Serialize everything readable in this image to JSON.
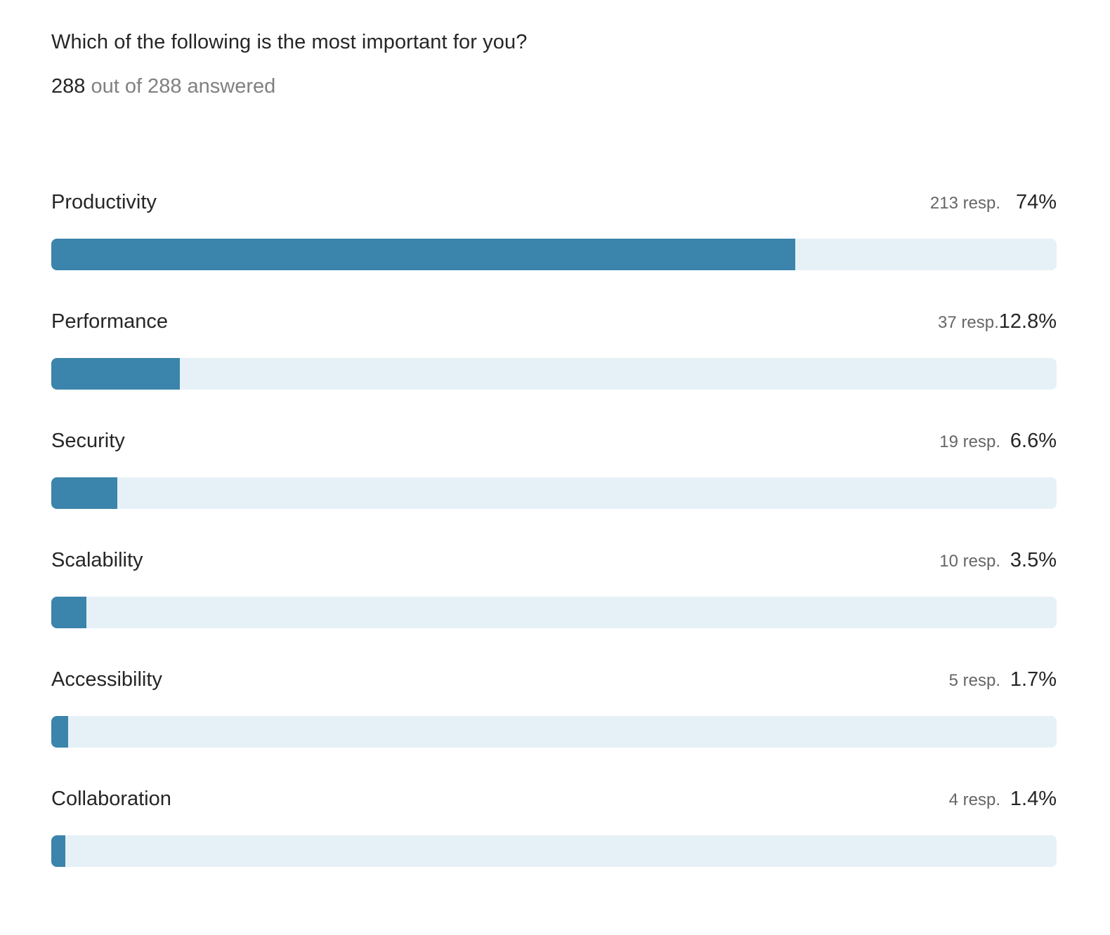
{
  "survey": {
    "question": "Which of the following is the most important for you?",
    "answered_count": "288",
    "answered_suffix": " out of 288 answered"
  },
  "colors": {
    "bar_fill": "#3b84ab",
    "bar_track": "#e6f1f7"
  },
  "options": [
    {
      "label": "Productivity",
      "responses": "213 resp.",
      "percent": "74%",
      "fraction": 0.74
    },
    {
      "label": "Performance",
      "responses": "37 resp.",
      "percent": "12.8%",
      "fraction": 0.128
    },
    {
      "label": "Security",
      "responses": "19 resp.",
      "percent": "6.6%",
      "fraction": 0.066
    },
    {
      "label": "Scalability",
      "responses": "10 resp.",
      "percent": "3.5%",
      "fraction": 0.035
    },
    {
      "label": "Accessibility",
      "responses": "5 resp.",
      "percent": "1.7%",
      "fraction": 0.017
    },
    {
      "label": "Collaboration",
      "responses": "4 resp.",
      "percent": "1.4%",
      "fraction": 0.014
    }
  ]
}
